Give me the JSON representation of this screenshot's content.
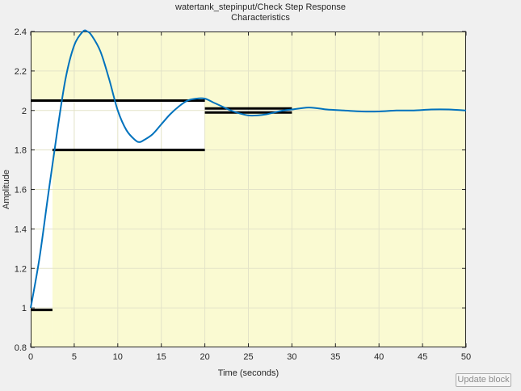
{
  "window": {
    "title_line1": "watertank_stepinput/Check Step Response",
    "title_line2": "Characteristics"
  },
  "buttons": {
    "update_label": "Update block"
  },
  "colors": {
    "background": "#f0f0f0",
    "allowed_region": "#fafad2",
    "bound_line": "#000000",
    "response_line": "#0072bd",
    "grid": "#e3e3c8"
  },
  "chart_data": {
    "type": "line",
    "xlabel": "Time (seconds)",
    "ylabel": "Amplitude",
    "xlim": [
      0,
      50
    ],
    "ylim": [
      0.8,
      2.4
    ],
    "xticks": [
      0,
      5,
      10,
      15,
      20,
      25,
      30,
      35,
      40,
      45,
      50
    ],
    "yticks": [
      0.8,
      1,
      1.2,
      1.4,
      1.6,
      1.8,
      2,
      2.2,
      2.4
    ],
    "grid": true,
    "series": [
      {
        "x": [
          0,
          1,
          2,
          3,
          4,
          5,
          6,
          6.5,
          7,
          8,
          9,
          10,
          11,
          12,
          12.5,
          13,
          14,
          15,
          16,
          17,
          18,
          19,
          20,
          21,
          22,
          23,
          24,
          25,
          26,
          27,
          28,
          29,
          30,
          32,
          34,
          36,
          38,
          40,
          42,
          44,
          46,
          48,
          50
        ],
        "y": [
          1.0,
          1.25,
          1.57,
          1.88,
          2.16,
          2.33,
          2.4,
          2.4,
          2.38,
          2.3,
          2.16,
          2.0,
          1.9,
          1.85,
          1.84,
          1.85,
          1.88,
          1.93,
          1.98,
          2.02,
          2.05,
          2.06,
          2.06,
          2.04,
          2.02,
          2.0,
          1.985,
          1.975,
          1.975,
          1.98,
          1.99,
          2.0,
          2.005,
          2.015,
          2.005,
          2.0,
          1.995,
          1.995,
          2.0,
          2.0,
          2.005,
          2.005,
          2.0
        ]
      }
    ],
    "bounds": {
      "upper": [
        {
          "x": [
            0,
            20
          ],
          "y": 2.05
        },
        {
          "x": [
            20,
            30
          ],
          "y": 2.01
        },
        {
          "x": [
            30,
            50
          ],
          "y": 2.4
        }
      ],
      "lower": [
        {
          "x": [
            0,
            2.5
          ],
          "y": 0.99
        },
        {
          "x": [
            2.5,
            20
          ],
          "y": 1.8
        },
        {
          "x": [
            20,
            30
          ],
          "y": 1.99
        },
        {
          "x": [
            30,
            50
          ],
          "y": 0.8
        }
      ]
    }
  }
}
